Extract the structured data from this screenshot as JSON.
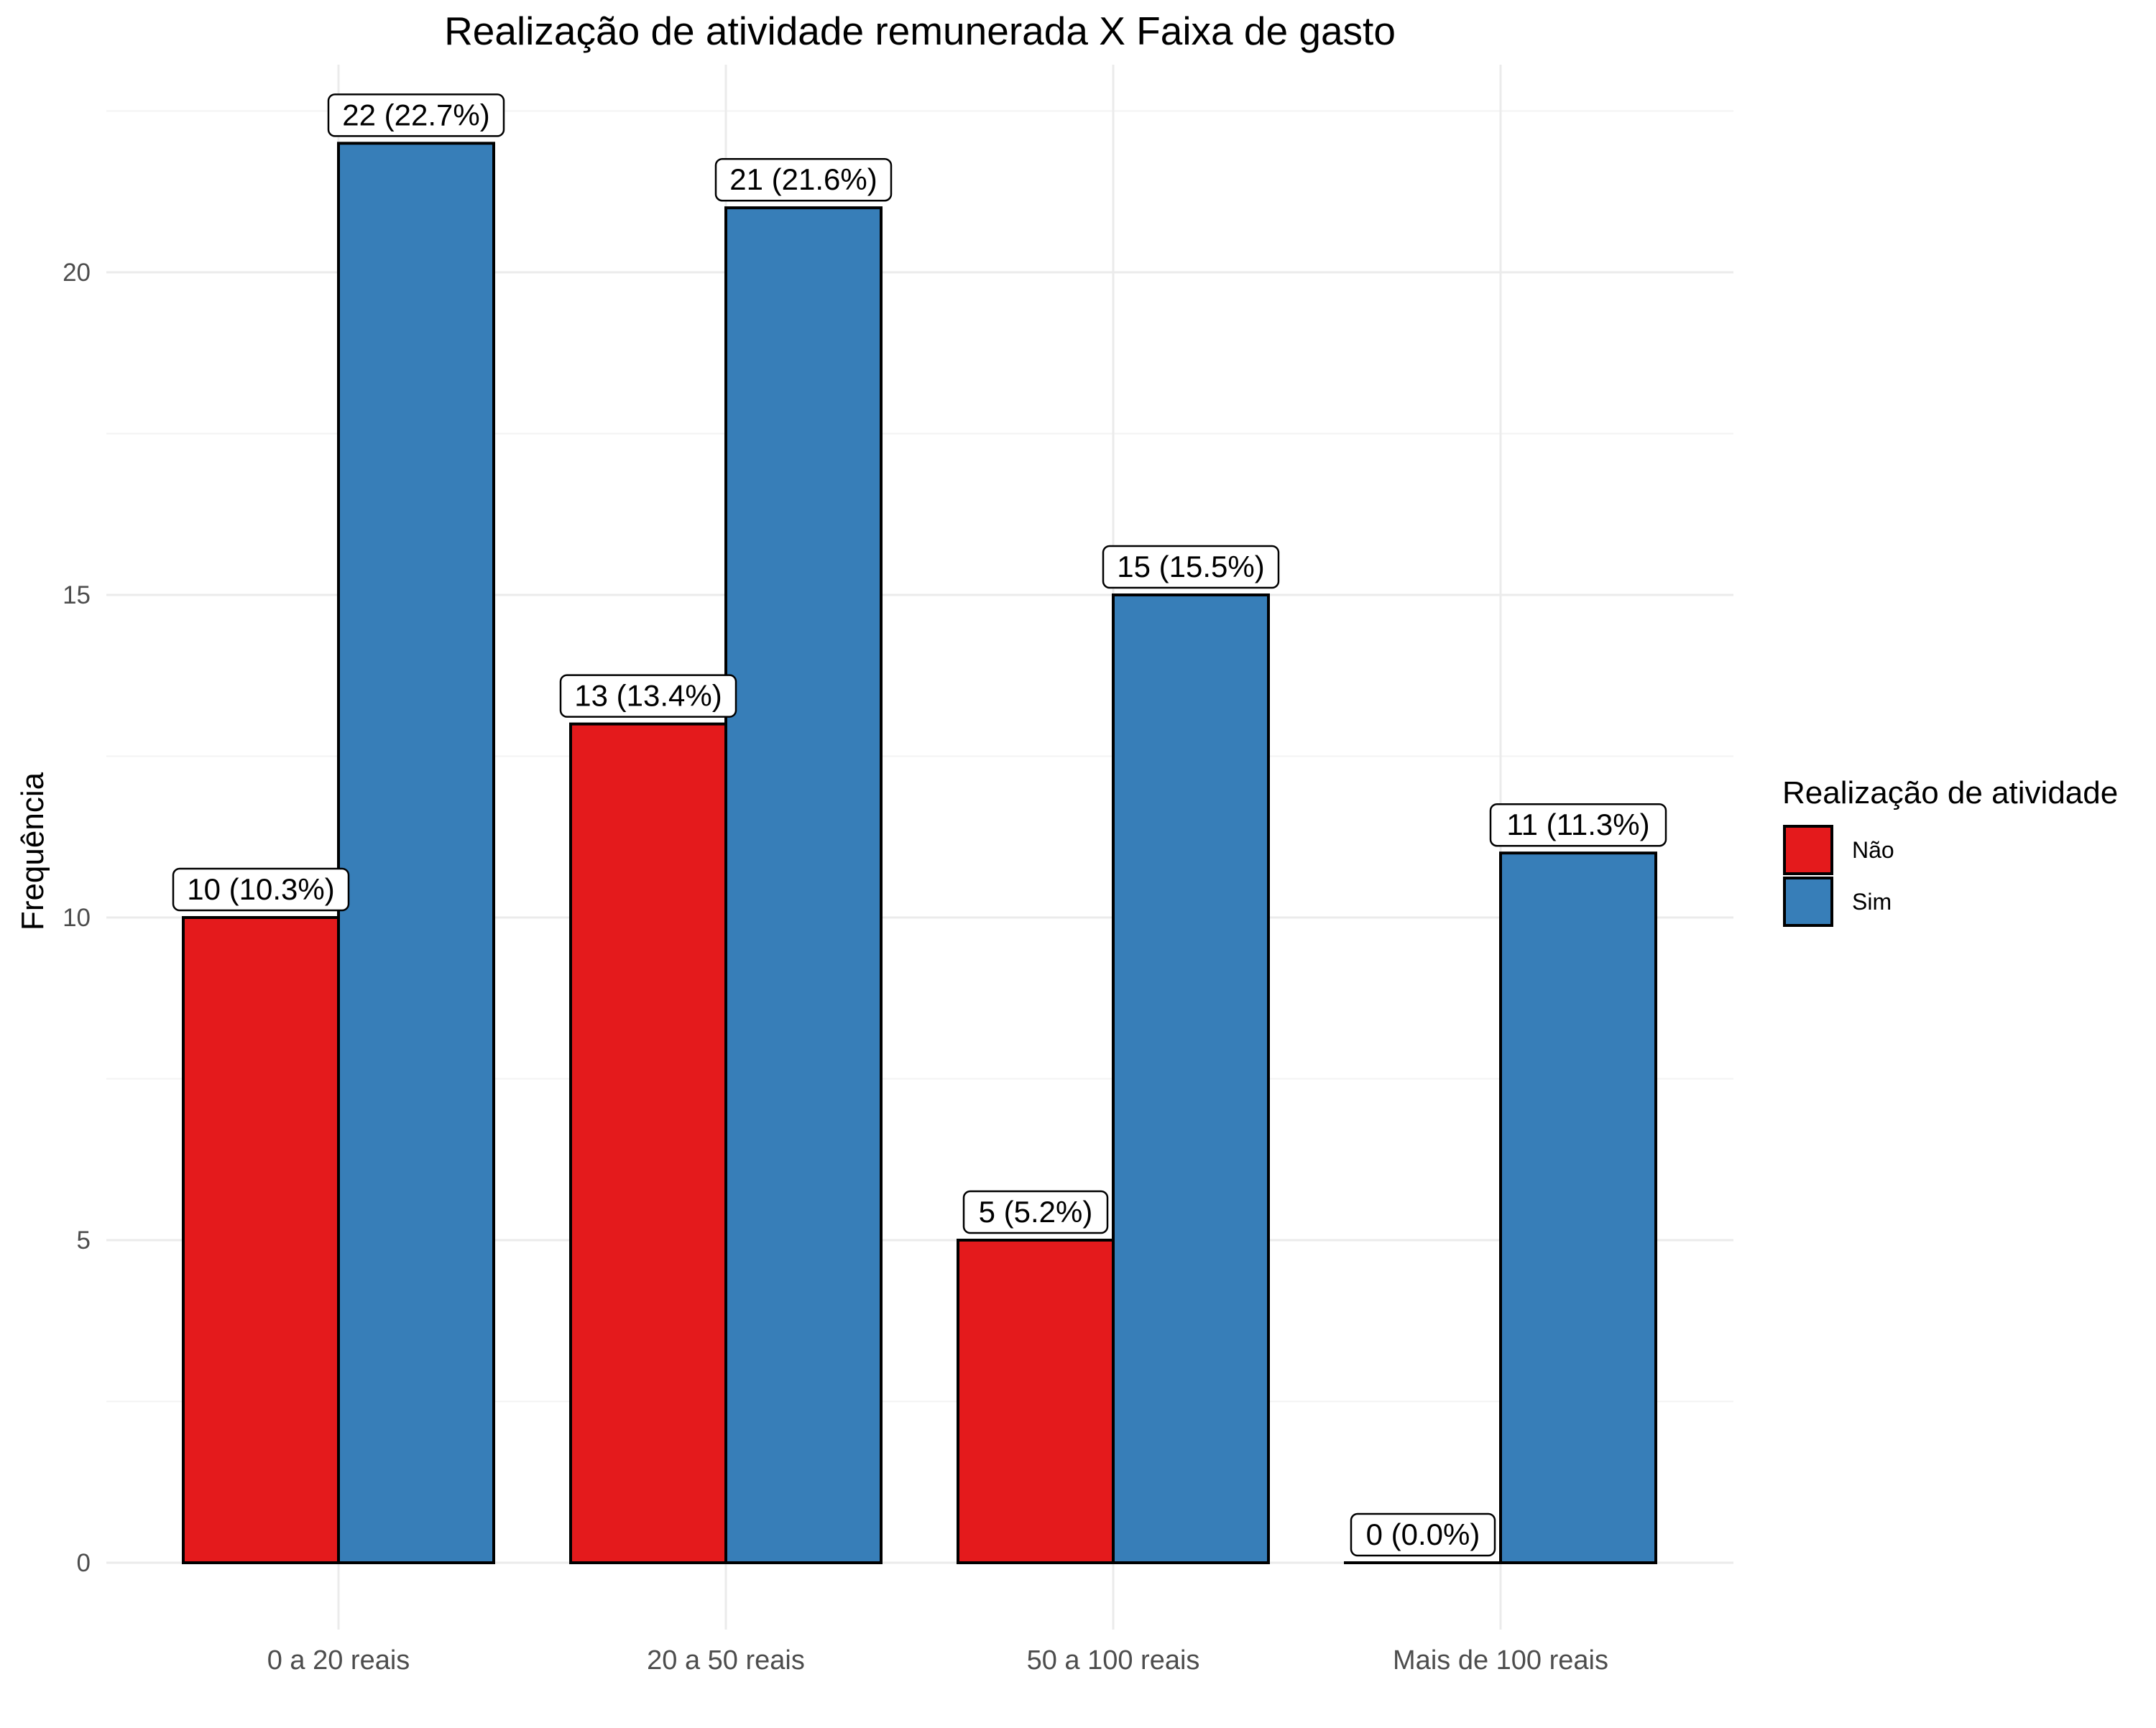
{
  "chart_data": {
    "type": "bar",
    "title": "Realização de atividade remunerada X Faixa de gasto",
    "xlabel": "",
    "ylabel": "Frequência",
    "ylim": [
      0,
      22.7
    ],
    "yticks": [
      0,
      5,
      10,
      15,
      20
    ],
    "grid": true,
    "legend": {
      "title": "Realização de atividade",
      "position": "right"
    },
    "categories": [
      "0 a 20 reais",
      "20 a 50 reais",
      "50 a 100 reais",
      "Mais de 100 reais"
    ],
    "series": [
      {
        "name": "Não",
        "color": "#e41a1c",
        "values": [
          10,
          13,
          5,
          0
        ],
        "labels": [
          "10 (10.3%)",
          "13 (13.4%)",
          "5 (5.2%)",
          "0 (0.0%)"
        ]
      },
      {
        "name": "Sim",
        "color": "#377eb8",
        "values": [
          22,
          21,
          15,
          11
        ],
        "labels": [
          "22 (22.7%)",
          "21 (21.6%)",
          "15 (15.5%)",
          "11 (11.3%)"
        ]
      }
    ]
  }
}
